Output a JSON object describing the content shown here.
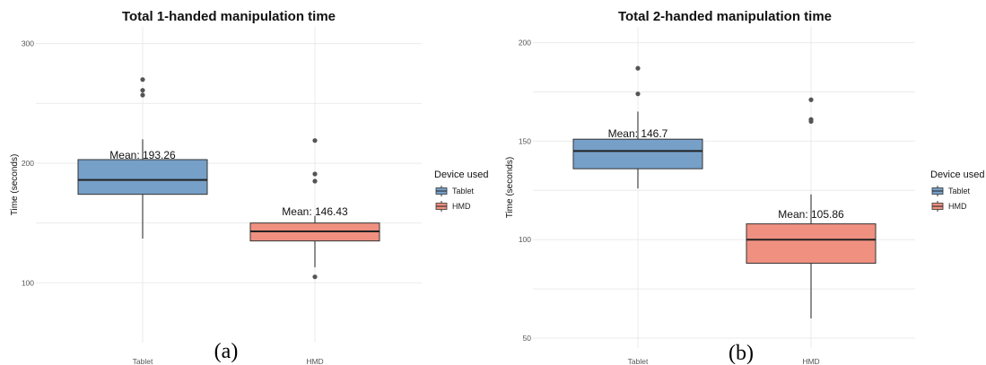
{
  "chart_data": [
    {
      "type": "box",
      "title": "Total 1-handed manipulation time",
      "ylabel": "Time (seconds)",
      "xlabel": "",
      "categories": [
        "Tablet",
        "HMD"
      ],
      "yticks": [
        100,
        200,
        300
      ],
      "ylim": [
        50,
        314
      ],
      "grid": true,
      "boxes": [
        {
          "category": "Tablet",
          "min": 137,
          "q1": 174,
          "median": 186,
          "q3": 203,
          "max": 220,
          "mean": 193.26,
          "mean_label": "Mean:  193.26",
          "outliers": [
            257,
            261,
            270
          ],
          "color": "#76a0c8"
        },
        {
          "category": "HMD",
          "min": 113,
          "q1": 135,
          "median": 143,
          "q3": 150,
          "max": 156,
          "mean": 146.43,
          "mean_label": "Mean:  146.43",
          "outliers": [
            105,
            185,
            191,
            219
          ],
          "color": "#ef9080"
        }
      ],
      "legend": {
        "title": "Device used",
        "position": "right",
        "entries": [
          "Tablet",
          "HMD"
        ]
      },
      "panel_label": "(a)"
    },
    {
      "type": "box",
      "title": "Total 2-handed manipulation time",
      "ylabel": "Time (seconds)",
      "xlabel": "",
      "categories": [
        "Tablet",
        "HMD"
      ],
      "yticks": [
        50,
        100,
        150,
        200
      ],
      "ylim": [
        45,
        208
      ],
      "grid": true,
      "boxes": [
        {
          "category": "Tablet",
          "min": 126,
          "q1": 136,
          "median": 145,
          "q3": 151,
          "max": 165,
          "mean": 146.7,
          "mean_label": "Mean:  146.7",
          "outliers": [
            174,
            187
          ],
          "color": "#76a0c8"
        },
        {
          "category": "HMD",
          "min": 60,
          "q1": 88,
          "median": 100,
          "q3": 108,
          "max": 123,
          "mean": 105.86,
          "mean_label": "Mean:  105.86",
          "outliers": [
            160,
            161,
            171
          ],
          "color": "#ef9080"
        }
      ],
      "legend": {
        "title": "Device used",
        "position": "right",
        "entries": [
          "Tablet",
          "HMD"
        ]
      },
      "panel_label": "(b)"
    }
  ]
}
